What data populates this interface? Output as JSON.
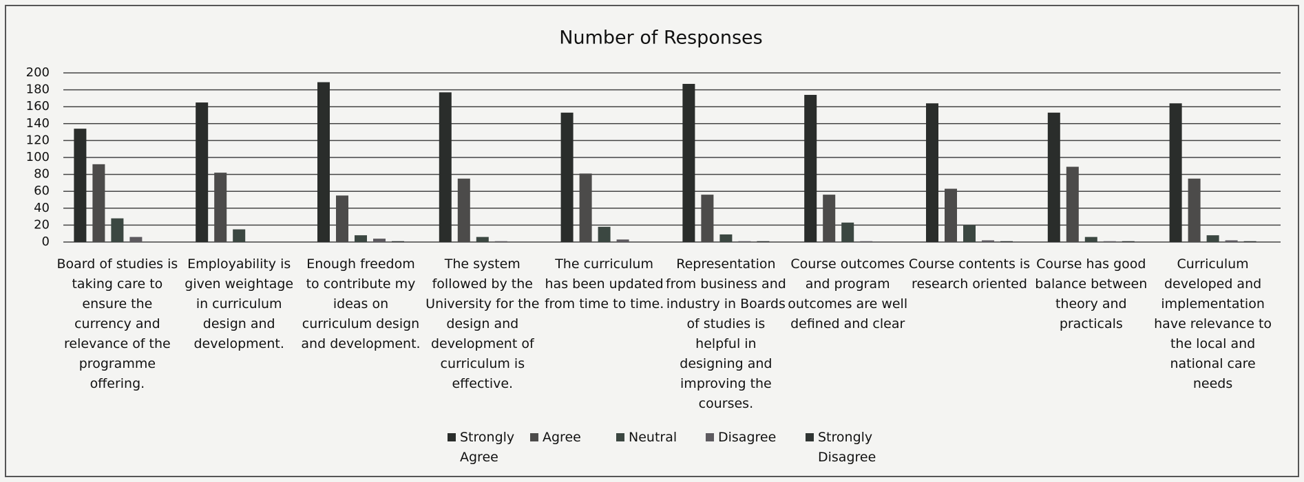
{
  "chart_data": {
    "type": "bar",
    "title": "Number of Responses",
    "categories": [
      "Board of studies is taking care to ensure the currency and relevance of the programme offering.",
      "Employability is given weightage in curriculum design and development.",
      "Enough freedom to contribute my ideas on curriculum design and development.",
      "The system followed by the University for the design and development of curriculum is effective.",
      "The curriculum has been updated from time to time.",
      "Representation from business and industry in Boards of studies is helpful in designing and improving the courses.",
      "Course outcomes and program outcomes are well defined and clear",
      "Course contents is research oriented",
      "Course has good balance between theory and practicals",
      "Curriculum developed and implementation have relevance to the local and national care needs"
    ],
    "series": [
      {
        "name": "Strongly Agree",
        "color": "#2a2d2b",
        "values": [
          134,
          165,
          189,
          177,
          153,
          187,
          174,
          164,
          153,
          164
        ]
      },
      {
        "name": "Agree",
        "color": "#4c4b4a",
        "values": [
          92,
          82,
          55,
          75,
          81,
          56,
          56,
          63,
          89,
          75
        ]
      },
      {
        "name": "Neutral",
        "color": "#3b4741",
        "values": [
          28,
          15,
          8,
          6,
          18,
          9,
          23,
          20,
          6,
          8
        ]
      },
      {
        "name": "Disagree",
        "color": "#5d5a5f",
        "values": [
          6,
          0,
          4,
          1,
          3,
          1,
          1,
          2,
          1,
          2
        ]
      },
      {
        "name": "Strongly Disagree",
        "color": "#303533",
        "values": [
          0,
          0,
          1,
          0,
          0,
          1,
          0,
          1,
          1,
          1
        ]
      }
    ],
    "ylim": [
      0,
      200
    ],
    "yticks": [
      0,
      20,
      40,
      60,
      80,
      100,
      120,
      140,
      160,
      180,
      200
    ],
    "grid": true,
    "legend": "bottom"
  }
}
